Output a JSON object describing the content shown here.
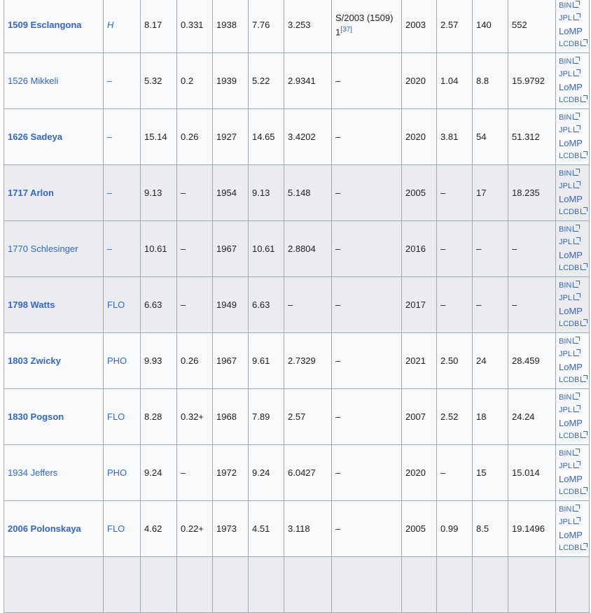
{
  "table": {
    "rows": [
      {
        "name": "1509 Esclangona",
        "bold": true,
        "group": "H",
        "group_italic": true,
        "c3": "8.17",
        "c4": "0.331",
        "c5": "1938",
        "c6": "7.76",
        "c7": "3.253",
        "c8": "S/2003 (1509) 1",
        "c8_ref": "[37]",
        "c9": "2003",
        "c10": "2.57",
        "c11": "140",
        "c12": "552",
        "bg": "light"
      },
      {
        "name": "1526 Mikkeli",
        "bold": false,
        "group": "–",
        "c3": "5.32",
        "c4": "0.2",
        "c5": "1939",
        "c6": "5.22",
        "c7": "2.9341",
        "c8": "–",
        "c9": "2020",
        "c10": "1.04",
        "c11": "8.8",
        "c12": "15.9792",
        "bg": "light"
      },
      {
        "name": "1626 Sadeya",
        "bold": true,
        "group": "–",
        "c3": "15.14",
        "c4": "0.26",
        "c5": "1927",
        "c6": "14.65",
        "c7": "3.4202",
        "c8": "–",
        "c9": "2020",
        "c10": "3.81",
        "c11": "54",
        "c12": "51.312",
        "bg": "light"
      },
      {
        "name": "1717 Arlon",
        "bold": true,
        "group": "–",
        "c3": "9.13",
        "c4": "–",
        "c5": "1954",
        "c6": "9.13",
        "c7": "5.148",
        "c8": "–",
        "c9": "2005",
        "c10": "–",
        "c11": "17",
        "c12": "18.235",
        "bg": "gray"
      },
      {
        "name": "1770 Schlesinger",
        "bold": false,
        "group": "–",
        "c3": "10.61",
        "c4": "–",
        "c5": "1967",
        "c6": "10.61",
        "c7": "2.8804",
        "c8": "–",
        "c9": "2016",
        "c10": "–",
        "c11": "–",
        "c12": "–",
        "bg": "gray"
      },
      {
        "name": "1798 Watts",
        "bold": true,
        "group": "FLO",
        "c3": "6.63",
        "c4": "–",
        "c5": "1949",
        "c6": "6.63",
        "c7": "–",
        "c8": "–",
        "c9": "2017",
        "c10": "–",
        "c11": "–",
        "c12": "–",
        "bg": "gray"
      },
      {
        "name": "1803 Zwicky",
        "bold": true,
        "group": "PHO",
        "c3": "9.93",
        "c4": "0.26",
        "c5": "1967",
        "c6": "9.61",
        "c7": "2.7329",
        "c8": "–",
        "c9": "2021",
        "c10": "2.50",
        "c11": "24",
        "c12": "28.459",
        "bg": "light"
      },
      {
        "name": "1830 Pogson",
        "bold": true,
        "group": "FLO",
        "c3": "8.28",
        "c4": "0.32+",
        "c5": "1968",
        "c6": "7.89",
        "c7": "2.57",
        "c8": "–",
        "c9": "2007",
        "c10": "2.52",
        "c11": "18",
        "c12": "24.24",
        "bg": "light"
      },
      {
        "name": "1934 Jeffers",
        "bold": false,
        "group": "PHO",
        "c3": "9.24",
        "c4": "–",
        "c5": "1972",
        "c6": "9.24",
        "c7": "6.0427",
        "c8": "–",
        "c9": "2020",
        "c10": "–",
        "c11": "15",
        "c12": "15.014",
        "bg": "light"
      },
      {
        "name": "2006 Polonskaya",
        "bold": true,
        "group": "FLO",
        "c3": "4.62",
        "c4": "0.22+",
        "c5": "1973",
        "c6": "4.51",
        "c7": "3.118",
        "c8": "–",
        "c9": "2005",
        "c10": "0.99",
        "c11": "8.5",
        "c12": "19.1496",
        "bg": "light"
      },
      {
        "name": "",
        "group": "",
        "c3": "",
        "c4": "",
        "c5": "",
        "c6": "",
        "c7": "",
        "c8": "",
        "c9": "",
        "c10": "",
        "c11": "",
        "c12": "",
        "bg": "gray",
        "partial": true
      }
    ],
    "ref_links": [
      "BIN",
      "JPL",
      "LoMP",
      "LCDB"
    ]
  },
  "colors": {
    "link": "#3366cc",
    "text": "#202122",
    "border": "#a2a9b1",
    "row_light": "#f8f9fa",
    "row_gray": "#eaecf0"
  }
}
